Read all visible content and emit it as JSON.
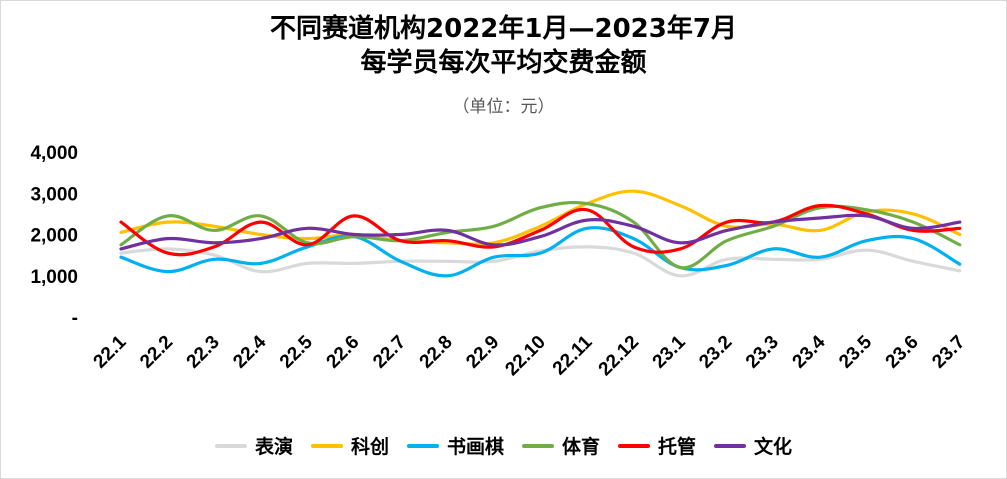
{
  "chart_data": {
    "type": "line",
    "title_line1": "不同赛道机构2022年1月—2023年7月",
    "title_line2": "每学员每次平均交费金额",
    "subtitle": "（单位：元）",
    "ylim": [
      0,
      4000
    ],
    "yticks": [
      0,
      1000,
      2000,
      3000,
      4000
    ],
    "ytick_labels": [
      "-",
      "1,000",
      "2,000",
      "3,000",
      "4,000"
    ],
    "categories": [
      "22.1",
      "22.2",
      "22.3",
      "22.4",
      "22.5",
      "22.6",
      "22.7",
      "22.8",
      "22.9",
      "22.10",
      "22.11",
      "22.12",
      "23.1",
      "23.2",
      "23.3",
      "23.4",
      "23.5",
      "23.6",
      "23.7"
    ],
    "series": [
      {
        "name": "表演",
        "color": "#d9d9d9",
        "values": [
          1550,
          1650,
          1500,
          1100,
          1300,
          1300,
          1350,
          1350,
          1350,
          1600,
          1700,
          1550,
          1000,
          1400,
          1400,
          1400,
          1620,
          1350,
          1120
        ]
      },
      {
        "name": "科创",
        "color": "#ffc000",
        "values": [
          2050,
          2300,
          2200,
          2000,
          1900,
          2000,
          1850,
          1800,
          1800,
          2200,
          2750,
          3050,
          2700,
          2200,
          2250,
          2100,
          2550,
          2500,
          2000
        ]
      },
      {
        "name": "书画棋",
        "color": "#00b0f0",
        "values": [
          1450,
          1100,
          1400,
          1300,
          1700,
          1950,
          1350,
          1000,
          1450,
          1550,
          2150,
          1900,
          1200,
          1250,
          1650,
          1450,
          1850,
          1900,
          1280
        ]
      },
      {
        "name": "体育",
        "color": "#70ad47",
        "values": [
          1750,
          2450,
          2100,
          2450,
          1800,
          1950,
          1850,
          2050,
          2200,
          2650,
          2750,
          2300,
          1200,
          1850,
          2200,
          2650,
          2600,
          2300,
          1750
        ]
      },
      {
        "name": "托管",
        "color": "#ff0000",
        "values": [
          2300,
          1550,
          1700,
          2300,
          1750,
          2450,
          1850,
          1850,
          1700,
          2100,
          2600,
          1700,
          1650,
          2300,
          2300,
          2700,
          2500,
          2100,
          2150
        ]
      },
      {
        "name": "文化",
        "color": "#7030a0",
        "values": [
          1650,
          1900,
          1800,
          1900,
          2150,
          2000,
          2000,
          2100,
          1750,
          1950,
          2350,
          2200,
          1800,
          2100,
          2300,
          2400,
          2450,
          2150,
          2300
        ]
      }
    ]
  }
}
